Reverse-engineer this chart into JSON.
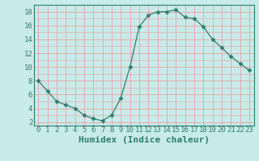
{
  "xlabel": "Humidex (Indice chaleur)",
  "x": [
    0,
    1,
    2,
    3,
    4,
    5,
    6,
    7,
    8,
    9,
    10,
    11,
    12,
    13,
    14,
    15,
    16,
    17,
    18,
    19,
    20,
    21,
    22,
    23
  ],
  "y": [
    8,
    6.5,
    5,
    4.5,
    4,
    3,
    2.5,
    2.2,
    3,
    5.5,
    10,
    15.8,
    17.5,
    18,
    18,
    18.3,
    17.2,
    17,
    15.8,
    14,
    12.8,
    11.5,
    10.5,
    9.5
  ],
  "ylim": [
    1.5,
    19.0
  ],
  "yticks": [
    2,
    4,
    6,
    8,
    10,
    12,
    14,
    16,
    18
  ],
  "xticks": [
    0,
    1,
    2,
    3,
    4,
    5,
    6,
    7,
    8,
    9,
    10,
    11,
    12,
    13,
    14,
    15,
    16,
    17,
    18,
    19,
    20,
    21,
    22,
    23
  ],
  "line_color": "#2e7d6e",
  "marker": "D",
  "marker_size": 2.5,
  "bg_color": "#c8eaea",
  "grid_color": "#e8a0a0",
  "spine_color": "#2e7d6e",
  "tick_label_size": 6.5,
  "xlabel_size": 8,
  "xlabel_weight": "bold",
  "fig_w": 3.2,
  "fig_h": 2.0,
  "dpi": 100
}
